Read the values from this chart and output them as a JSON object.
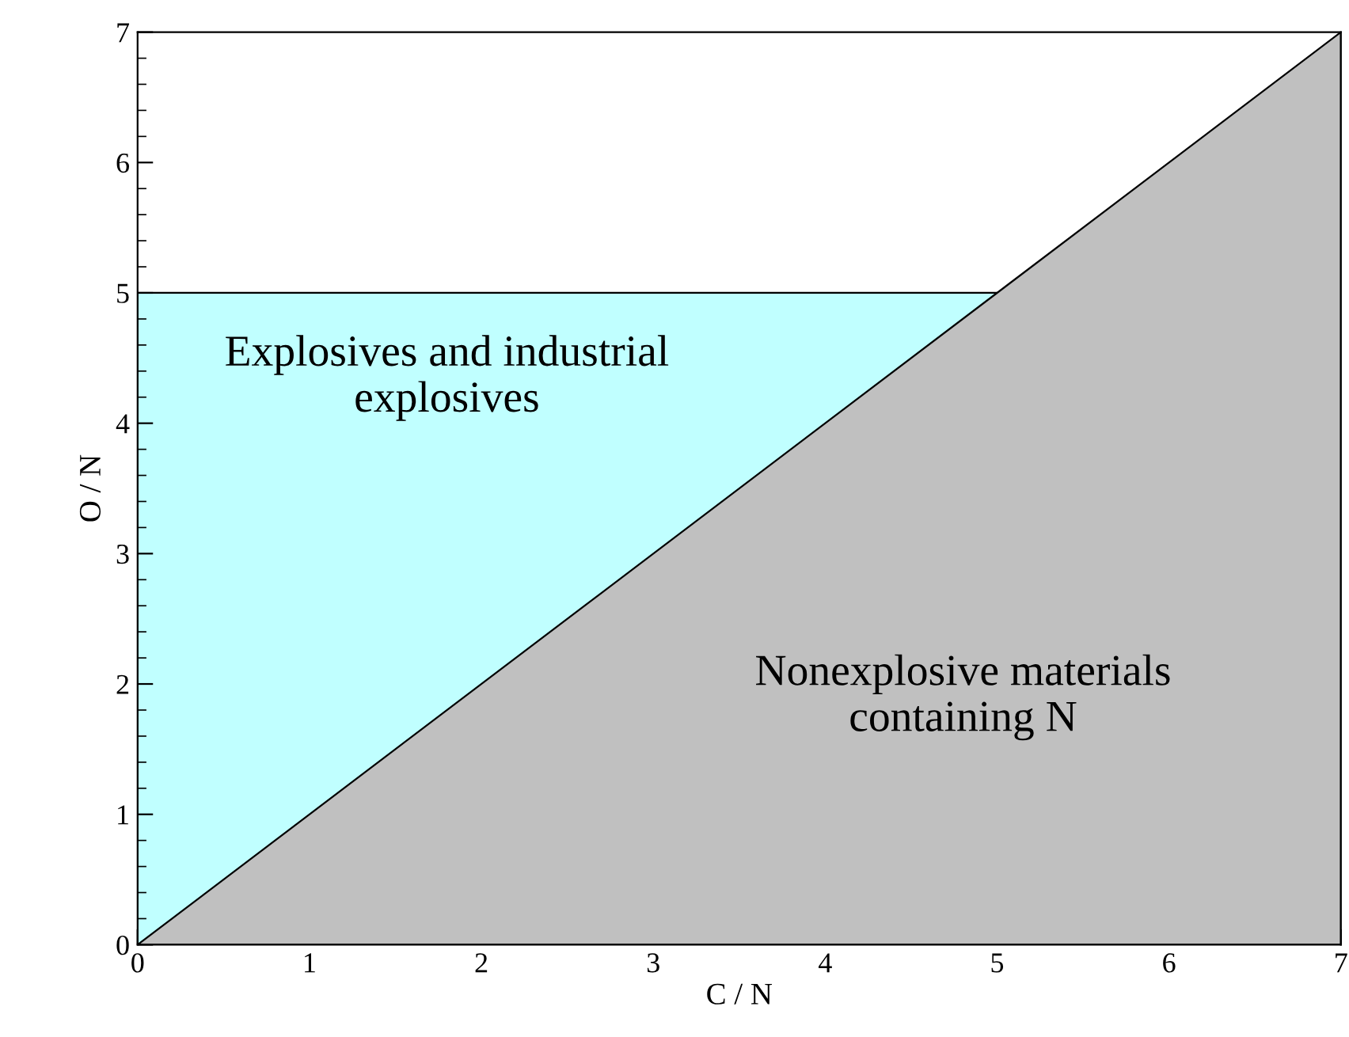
{
  "chart_data": {
    "type": "area",
    "xlabel": "C / N",
    "ylabel": "O / N",
    "series": [
      {
        "color": "#c0ffff",
        "x": [
          0,
          5
        ],
        "values": [
          5,
          5
        ]
      },
      {
        "color": "#c0c0c0",
        "x": [
          0,
          7
        ],
        "values": [
          0,
          7
        ]
      }
    ],
    "xlim": [
      0,
      7
    ],
    "ylim": [
      0,
      7
    ],
    "xticks": [
      0,
      1,
      2,
      3,
      4,
      5,
      6,
      7
    ],
    "yticks": [
      0,
      1,
      2,
      3,
      4,
      5,
      6,
      7
    ],
    "grid": false,
    "legend": false,
    "annotations": [
      "Explosives and industrial\nexplosives",
      "Nonexplosive materials\ncontaining N"
    ]
  }
}
